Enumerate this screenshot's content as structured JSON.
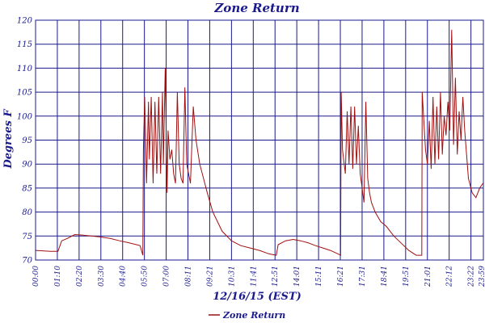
{
  "chart_data": {
    "type": "line",
    "title": "Zone Return",
    "xlabel": "12/16/15 (EST)",
    "ylabel": "Degrees F",
    "ylim": [
      70,
      120
    ],
    "yticks": [
      "70",
      "75",
      "80",
      "85",
      "90",
      "95",
      "100",
      "105",
      "110",
      "115",
      "120"
    ],
    "xticks": [
      "00:00",
      "01:10",
      "02:20",
      "03:30",
      "04:40",
      "05:50",
      "07:00",
      "08:11",
      "09:21",
      "10:31",
      "11:41",
      "12:51",
      "14:01",
      "15:11",
      "16:21",
      "17:31",
      "18:41",
      "19:51",
      "21:01",
      "22:12",
      "23:22",
      "23:59"
    ],
    "grid": true,
    "legend_position": "bottom",
    "colors": {
      "series": "#a01010",
      "grid": "#1a1a8c",
      "text": "#1a1a8c"
    },
    "series": [
      {
        "name": "Zone Return",
        "x_hours": [
          0,
          0.8,
          1.2,
          1.4,
          1.7,
          2.1,
          2.5,
          3.0,
          3.5,
          4.0,
          4.5,
          5.0,
          5.6,
          5.75,
          5.78,
          5.85,
          5.95,
          6.05,
          6.1,
          6.2,
          6.3,
          6.4,
          6.5,
          6.6,
          6.7,
          6.8,
          6.85,
          6.95,
          7.05,
          7.1,
          7.2,
          7.3,
          7.4,
          7.5,
          7.6,
          7.7,
          7.8,
          7.9,
          8.0,
          8.1,
          8.2,
          8.3,
          8.45,
          8.6,
          8.8,
          9.0,
          9.2,
          9.5,
          10.0,
          10.5,
          11.0,
          11.5,
          12.0,
          12.5,
          12.9,
          13.0,
          13.4,
          13.8,
          14.2,
          14.6,
          15.0,
          15.4,
          15.8,
          16.2,
          16.35,
          16.38,
          16.45,
          16.6,
          16.7,
          16.8,
          16.9,
          17.0,
          17.1,
          17.2,
          17.3,
          17.4,
          17.5,
          17.6,
          17.7,
          17.8,
          17.9,
          18.0,
          18.2,
          18.5,
          18.8,
          19.2,
          19.6,
          20.0,
          20.4,
          20.7,
          20.72,
          20.9,
          21.0,
          21.1,
          21.2,
          21.3,
          21.4,
          21.5,
          21.6,
          21.7,
          21.8,
          21.9,
          22.0,
          22.1,
          22.2,
          22.3,
          22.4,
          22.5,
          22.6,
          22.7,
          22.8,
          22.9,
          23.0,
          23.1,
          23.2,
          23.4,
          23.6,
          23.8,
          23.98
        ],
        "values": [
          72,
          71.8,
          71.8,
          74,
          74.5,
          75.3,
          75.2,
          75.0,
          74.8,
          74.5,
          74.0,
          73.6,
          73.0,
          71.0,
          93,
          104,
          86,
          103,
          91,
          104,
          86,
          103,
          88,
          104,
          88,
          105,
          90,
          110,
          84,
          97,
          91,
          93,
          88,
          86,
          105,
          90,
          87,
          86,
          106,
          90,
          88,
          86,
          102,
          95,
          90,
          87,
          84,
          80,
          76,
          74,
          73,
          72.5,
          72,
          71.3,
          71.0,
          73.2,
          74.0,
          74.3,
          74.0,
          73.6,
          73.0,
          72.5,
          72.0,
          71.3,
          71.0,
          105,
          93,
          88,
          101,
          90,
          102,
          89,
          102,
          90,
          98,
          88,
          85,
          82,
          103,
          87,
          84,
          82,
          80,
          78,
          77,
          75,
          73.5,
          72,
          71,
          71.0,
          105,
          93,
          90,
          99,
          89,
          104,
          90,
          102,
          91,
          105,
          92,
          100,
          96,
          103,
          97,
          118,
          94,
          108,
          92,
          101,
          95,
          104,
          97,
          92,
          87,
          84,
          83,
          85,
          86
        ]
      }
    ]
  }
}
